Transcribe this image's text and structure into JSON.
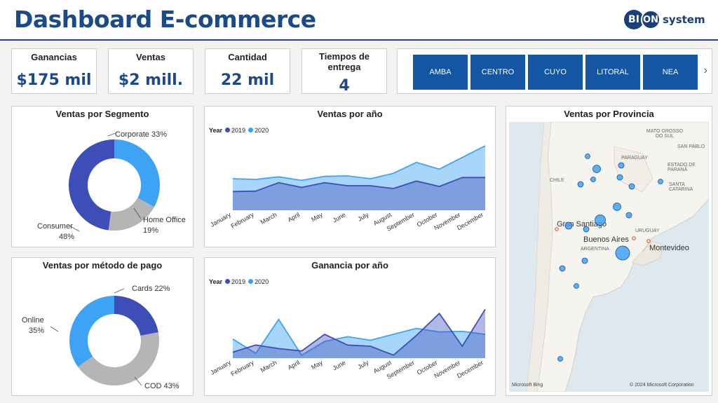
{
  "header": {
    "title": "Dashboard E-commerce",
    "logo_bi": "BI",
    "logo_on": "ON",
    "logo_system": "system"
  },
  "kpis": [
    {
      "label": "Ganancias",
      "value": "$175 mil"
    },
    {
      "label": "Ventas",
      "value": "$2 mill."
    },
    {
      "label": "Cantidad",
      "value": "22 mil"
    },
    {
      "label": "Tiempos de entrega",
      "value": "4"
    }
  ],
  "regions": [
    "AMBA",
    "CENTRO",
    "CUYO",
    "LITORAL",
    "NEA"
  ],
  "colors": {
    "c2019": "#3d4eb8",
    "c2020": "#3fa3f5",
    "gray": "#b5b5b5",
    "accent": "#1a4a8a",
    "button": "#1356a3"
  },
  "chart_data": [
    {
      "type": "pie",
      "title": "Ventas por Segmento",
      "slices": [
        {
          "name": "Corporate",
          "value": 33,
          "label": "Corporate 33%",
          "color": "#3fa3f5"
        },
        {
          "name": "Home Office",
          "value": 19,
          "label_line1": "Home Office",
          "label_line2": "19%",
          "color": "#b5b5b5"
        },
        {
          "name": "Consumer",
          "value": 48,
          "label_line1": "Consumer",
          "label_line2": "48%",
          "color": "#3d4eb8"
        }
      ]
    },
    {
      "type": "pie",
      "title": "Ventas por método de pago",
      "slices": [
        {
          "name": "Cards",
          "value": 22,
          "label": "Cards 22%",
          "color": "#3d4eb8"
        },
        {
          "name": "COD",
          "value": 43,
          "label": "COD 43%",
          "color": "#b5b5b5"
        },
        {
          "name": "Online",
          "value": 35,
          "label_line1": "Online",
          "label_line2": "35%",
          "color": "#3fa3f5"
        }
      ]
    },
    {
      "type": "area",
      "title": "Ventas por año",
      "legend_title": "Year",
      "categories": [
        "January",
        "February",
        "March",
        "April",
        "May",
        "June",
        "July",
        "August",
        "September",
        "October",
        "November",
        "December"
      ],
      "series": [
        {
          "name": "2019",
          "values": [
            80,
            82,
            118,
            98,
            118,
            105,
            105,
            93,
            125,
            102,
            140,
            140
          ],
          "color": "#3d4eb8"
        },
        {
          "name": "2020",
          "values": [
            135,
            132,
            143,
            128,
            145,
            147,
            135,
            158,
            205,
            176,
            226,
            276
          ],
          "color": "#3fa3f5"
        }
      ],
      "ylim": [
        0,
        300
      ]
    },
    {
      "type": "area",
      "title": "Ganancia por año",
      "legend_title": "Year",
      "categories": [
        "January",
        "February",
        "March",
        "April",
        "May",
        "June",
        "July",
        "August",
        "September",
        "October",
        "November",
        "December"
      ],
      "series": [
        {
          "name": "2019",
          "values": [
            10,
            22,
            16,
            12,
            40,
            22,
            20,
            5,
            38,
            75,
            20,
            82
          ],
          "color": "#3d4eb8"
        },
        {
          "name": "2020",
          "values": [
            32,
            8,
            65,
            5,
            28,
            36,
            30,
            40,
            50,
            44,
            45,
            40
          ],
          "color": "#3fa3f5"
        }
      ],
      "ylim": [
        0,
        100
      ]
    }
  ],
  "map": {
    "title": "Ventas por Provincia",
    "labels": {
      "mato_grosso": "MATO GROSSO DO SUL",
      "san_pablo": "SAN PABLO",
      "paraguay": "PARAGUAY",
      "estado": "ESTADO DE PARANÁ",
      "chile": "CHILE",
      "santa_catarina": "SANTA CATARINA",
      "uruguay": "URUGUAY",
      "argentina": "ARGENTINA",
      "gran_santiago": "Gran Santiago",
      "buenos_aires": "Buenos Aires",
      "montevideo": "Montevideo",
      "bing": "Microsoft Bing",
      "copyright": "© 2024 Microsoft Corporation"
    }
  }
}
